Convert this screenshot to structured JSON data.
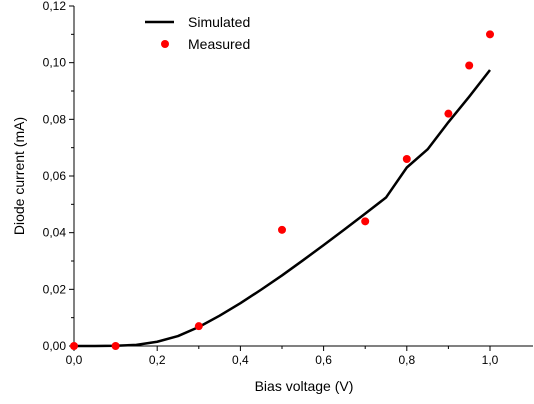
{
  "chart_data": {
    "type": "line",
    "xlabel": "Bias voltage (V)",
    "ylabel": "Diode current (mA)",
    "xlim": [
      0.0,
      1.05
    ],
    "ylim": [
      0.0,
      0.12
    ],
    "grid": false,
    "legend_position": "top-left",
    "x_ticks": [
      0.0,
      0.2,
      0.4,
      0.6,
      0.8,
      1.0
    ],
    "x_tick_labels": [
      "0,0",
      "0,2",
      "0,4",
      "0,6",
      "0,8",
      "1,0"
    ],
    "y_ticks": [
      0.0,
      0.02,
      0.04,
      0.06,
      0.08,
      0.1,
      0.12
    ],
    "y_tick_labels": [
      "0,00",
      "0,02",
      "0,04",
      "0,06",
      "0,08",
      "0,10",
      "0,12"
    ],
    "series": [
      {
        "name": "Simulated",
        "kind": "line",
        "color": "#000000",
        "x": [
          0.0,
          0.05,
          0.1,
          0.15,
          0.2,
          0.25,
          0.3,
          0.35,
          0.4,
          0.45,
          0.5,
          0.55,
          0.6,
          0.65,
          0.7,
          0.75,
          0.8,
          0.85,
          0.9,
          0.95,
          1.0
        ],
        "y": [
          0.0,
          0.0,
          0.0001,
          0.0004,
          0.0015,
          0.0035,
          0.0067,
          0.0107,
          0.0151,
          0.0199,
          0.0249,
          0.0302,
          0.0356,
          0.0411,
          0.0467,
          0.0524,
          0.063,
          0.0694,
          0.079,
          0.088,
          0.0974
        ]
      },
      {
        "name": "Measured",
        "kind": "scatter",
        "color": "#ff0000",
        "x": [
          0.0,
          0.1,
          0.3,
          0.5,
          0.7,
          0.8,
          0.9,
          0.95,
          1.0
        ],
        "y": [
          0.0,
          0.0,
          0.007,
          0.041,
          0.044,
          0.066,
          0.082,
          0.099,
          0.11
        ]
      }
    ]
  }
}
